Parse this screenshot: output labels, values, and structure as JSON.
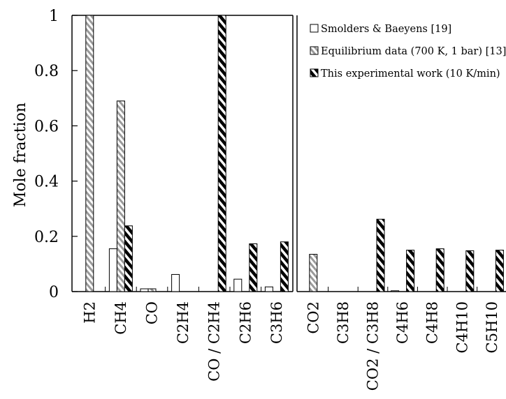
{
  "chart_data": {
    "type": "bar",
    "title": "",
    "xlabel": "",
    "ylabel": "Mole fraction",
    "ylim": [
      0,
      1
    ],
    "yticks": [
      "0",
      "0.2",
      "0.4",
      "0.6",
      "0.8",
      "1"
    ],
    "grid": false,
    "legend_position": "top-right",
    "panels": [
      {
        "categories": [
          "H2",
          "CH4",
          "CO",
          "C2H4",
          "CO / C2H4",
          "C2H6",
          "C3H6"
        ],
        "series": [
          {
            "name": "Smolders & Baeyens [19]",
            "values": [
              null,
              0.155,
              0.01,
              0.062,
              null,
              0.045,
              0.017
            ]
          },
          {
            "name": "Equilibrium data (700 K, 1 bar) [13]",
            "values": [
              1.0,
              0.69,
              0.01,
              null,
              null,
              null,
              null
            ]
          },
          {
            "name": "This experimental work (10 K/min)",
            "values": [
              null,
              0.238,
              null,
              null,
              1.0,
              0.173,
              0.18
            ]
          }
        ]
      },
      {
        "categories": [
          "CO2",
          "C3H8",
          "CO2 / C3H8",
          "C4H6",
          "C4H8",
          "C4H10",
          "C5H10"
        ],
        "series": [
          {
            "name": "Smolders & Baeyens [19]",
            "values": [
              null,
              null,
              null,
              0.003,
              null,
              null,
              null
            ]
          },
          {
            "name": "Equilibrium data (700 K, 1 bar) [13]",
            "values": [
              0.135,
              null,
              null,
              null,
              null,
              null,
              null
            ]
          },
          {
            "name": "This experimental work (10 K/min)",
            "values": [
              null,
              null,
              0.262,
              0.15,
              0.155,
              0.148,
              0.15
            ]
          }
        ]
      }
    ],
    "colors": {
      "axis": "#000000",
      "smolders": "#ffffff",
      "equilibrium_stripe": "#9a9a9a",
      "experimental_stripe": "#000000"
    }
  }
}
